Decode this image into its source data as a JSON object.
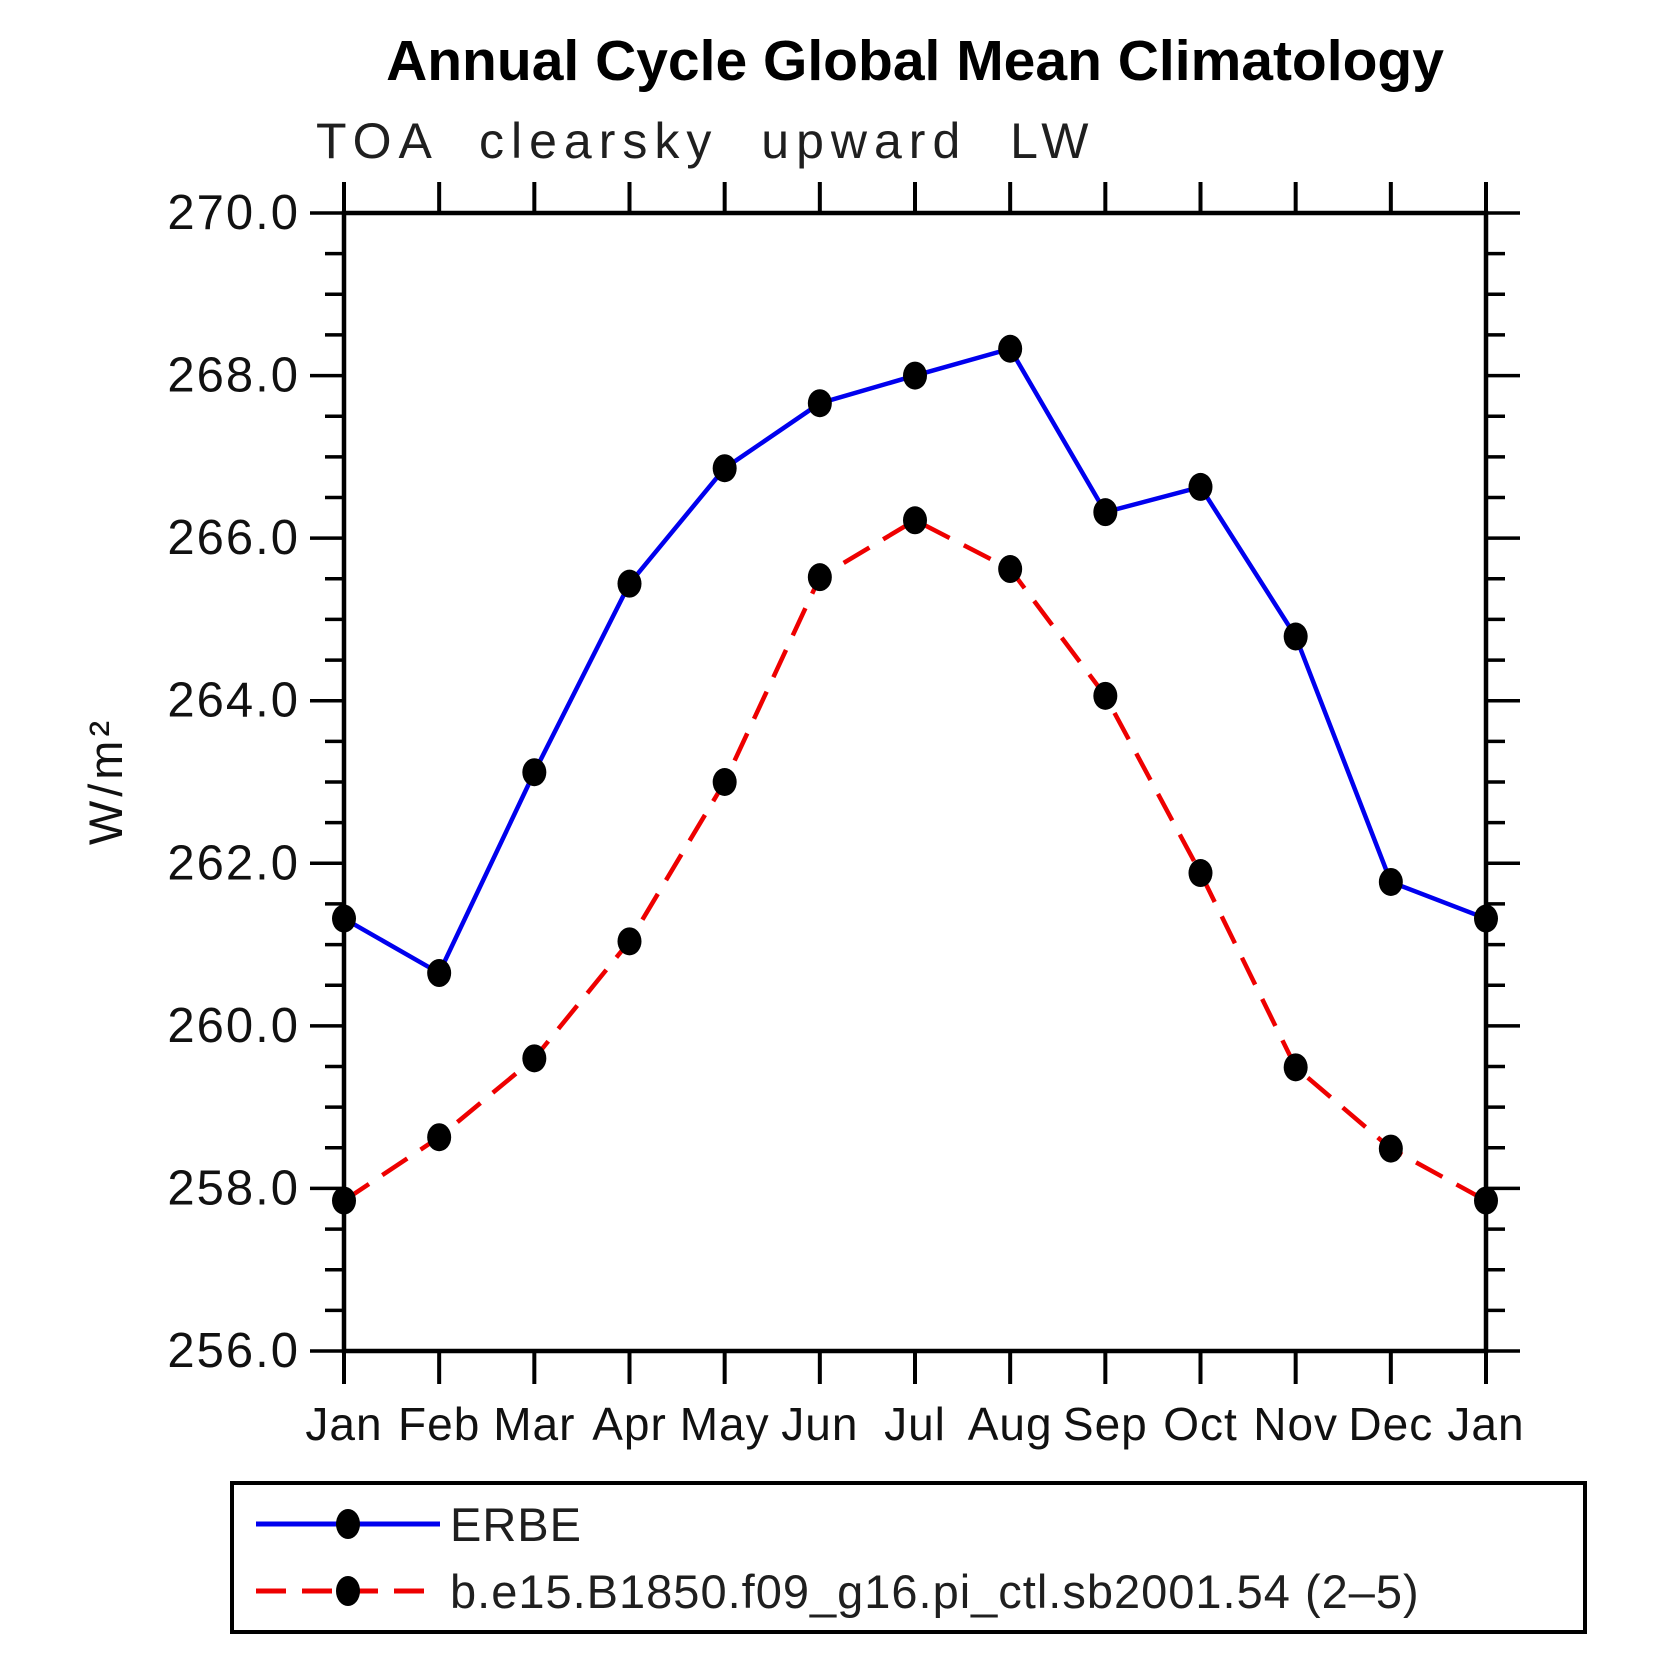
{
  "header": {
    "title": "Annual Cycle Global Mean Climatology",
    "subtitle": "TOA clearsky upward LW"
  },
  "chart_data": {
    "type": "line",
    "title": "Annual Cycle Global Mean Climatology",
    "subtitle": "TOA clearsky upward LW",
    "xlabel": "",
    "ylabel": "W/m²",
    "categories": [
      "Jan",
      "Feb",
      "Mar",
      "Apr",
      "May",
      "Jun",
      "Jul",
      "Aug",
      "Sep",
      "Oct",
      "Nov",
      "Dec",
      "Jan"
    ],
    "ylim": [
      256.0,
      270.0
    ],
    "ytick_interval": 2.0,
    "ytick_minor_interval": 0.5,
    "ytick_labels": [
      "256.0",
      "258.0",
      "260.0",
      "262.0",
      "264.0",
      "266.0",
      "268.0",
      "270.0"
    ],
    "grid": false,
    "legend_position": "bottom",
    "axis_color": "#000000",
    "series": [
      {
        "name": "ERBE",
        "color": "#0000ee",
        "style": "solid",
        "marker": "circle",
        "marker_color": "#000000",
        "values": [
          261.32,
          260.65,
          263.12,
          265.44,
          266.86,
          267.66,
          268.0,
          268.33,
          266.32,
          266.63,
          264.79,
          261.77,
          261.32
        ]
      },
      {
        "name": "b.e15.B1850.f09_g16.pi_ctl.sb2001.54 (2–5)",
        "color": "#ee0000",
        "style": "dashed",
        "marker": "circle",
        "marker_color": "#000000",
        "values": [
          257.85,
          258.63,
          259.6,
          261.04,
          263.0,
          265.52,
          266.22,
          265.62,
          264.06,
          261.88,
          259.49,
          258.49,
          257.85
        ]
      }
    ]
  }
}
